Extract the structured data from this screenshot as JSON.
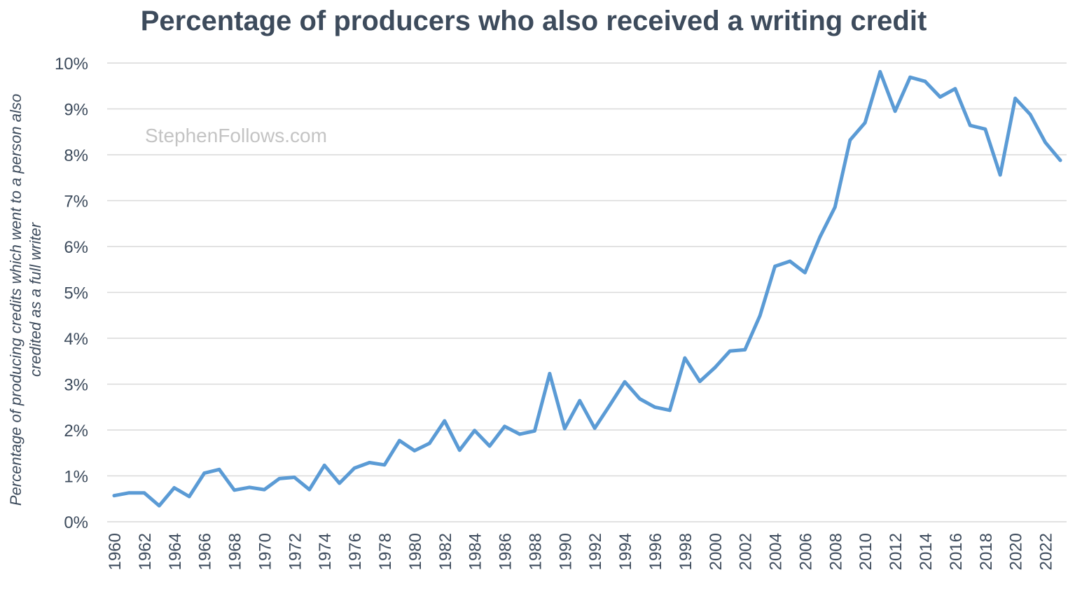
{
  "watermark": "StephenFollows.com",
  "colors": {
    "line": "#5b9bd5",
    "grid": "#d9d9d9",
    "text": "#3d4b5c",
    "watermark": "#c4c4c4"
  },
  "chart_data": {
    "type": "line",
    "title": "Percentage of producers who also received a writing credit",
    "ylabel_lines": [
      "Percentage of producing credits which went to a person also",
      "credited as a full writer"
    ],
    "xlabel": "",
    "ylim": [
      0,
      10
    ],
    "yticks": [
      0,
      1,
      2,
      3,
      4,
      5,
      6,
      7,
      8,
      9,
      10
    ],
    "ytick_labels": [
      "0%",
      "1%",
      "2%",
      "3%",
      "4%",
      "5%",
      "6%",
      "7%",
      "8%",
      "9%",
      "10%"
    ],
    "xlim": [
      1960,
      2023
    ],
    "xtick_labels": [
      "1960",
      "1962",
      "1964",
      "1966",
      "1968",
      "1970",
      "1972",
      "1974",
      "1976",
      "1978",
      "1980",
      "1982",
      "1984",
      "1986",
      "1988",
      "1990",
      "1992",
      "1994",
      "1996",
      "1998",
      "2000",
      "2002",
      "2004",
      "2006",
      "2008",
      "2010",
      "2012",
      "2014",
      "2016",
      "2018",
      "2020",
      "2022"
    ],
    "grid": true,
    "legend": "none",
    "series": [
      {
        "x": [
          1960,
          1961,
          1962,
          1963,
          1964,
          1965,
          1966,
          1967,
          1968,
          1969,
          1970,
          1971,
          1972,
          1973,
          1974,
          1975,
          1976,
          1977,
          1978,
          1979,
          1980,
          1981,
          1982,
          1983,
          1984,
          1985,
          1986,
          1987,
          1988,
          1989,
          1990,
          1991,
          1992,
          1993,
          1994,
          1995,
          1996,
          1997,
          1998,
          1999,
          2000,
          2001,
          2002,
          2003,
          2004,
          2005,
          2006,
          2007,
          2008,
          2009,
          2010,
          2011,
          2012,
          2013,
          2014,
          2015,
          2016,
          2017,
          2018,
          2019,
          2020,
          2021,
          2022,
          2023
        ],
        "values": [
          0.57,
          0.63,
          0.63,
          0.35,
          0.74,
          0.55,
          1.06,
          1.14,
          0.69,
          0.75,
          0.7,
          0.94,
          0.97,
          0.7,
          1.23,
          0.84,
          1.17,
          1.29,
          1.24,
          1.77,
          1.55,
          1.71,
          2.2,
          1.56,
          1.99,
          1.65,
          2.08,
          1.91,
          1.98,
          3.23,
          2.03,
          2.64,
          2.04,
          2.54,
          3.05,
          2.68,
          2.5,
          2.43,
          3.57,
          3.06,
          3.36,
          3.72,
          3.75,
          4.49,
          5.57,
          5.68,
          5.43,
          6.21,
          6.86,
          8.32,
          8.7,
          9.81,
          8.95,
          9.69,
          9.6,
          9.26,
          9.44,
          8.64,
          8.56,
          7.56,
          9.23,
          8.88,
          8.27,
          7.88
        ]
      }
    ]
  }
}
